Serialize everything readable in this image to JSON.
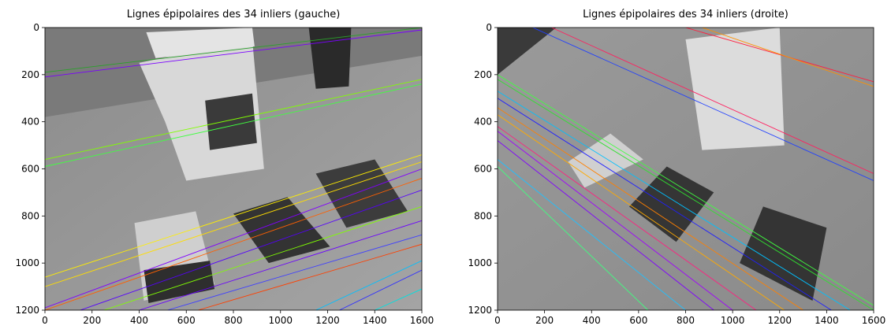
{
  "chart_data": [
    {
      "type": "image",
      "title": "Lignes épipolaires des 34 inliers (gauche)",
      "xlim": [
        0,
        1600
      ],
      "ylim": [
        1200,
        0
      ],
      "xticks": [
        0,
        200,
        400,
        600,
        800,
        1000,
        1200,
        1400,
        1600
      ],
      "yticks": [
        0,
        200,
        400,
        600,
        800,
        1000,
        1200
      ]
    },
    {
      "type": "image",
      "title": "Lignes épipolaires des 34 inliers (droite)",
      "xlim": [
        0,
        1600
      ],
      "ylim": [
        1200,
        0
      ],
      "xticks": [
        0,
        200,
        400,
        600,
        800,
        1000,
        1200,
        1400,
        1600
      ],
      "yticks": [
        0,
        200,
        400,
        600,
        800,
        1000,
        1200
      ]
    }
  ]
}
